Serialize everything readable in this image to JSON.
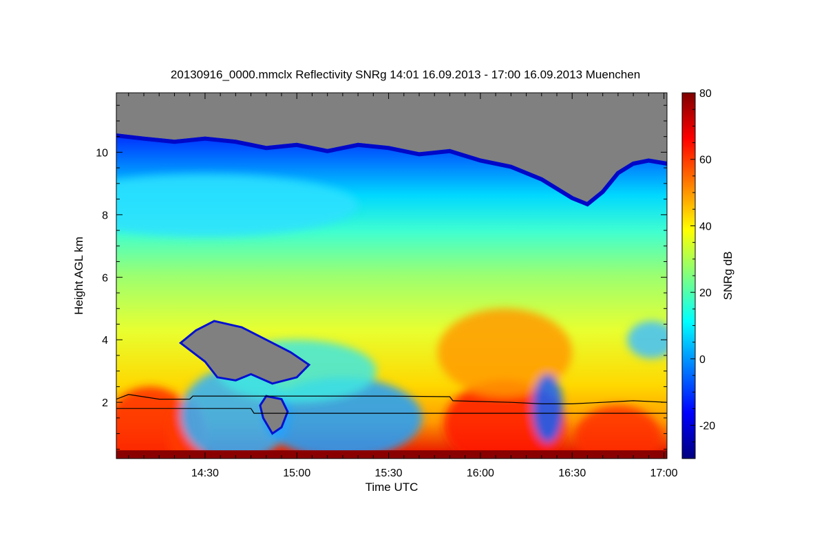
{
  "chart_data": {
    "type": "heatmap",
    "title": "20130916_0000.mmclx Reflectivity SNRg   14:01 16.09.2013 - 17:00 16.09.2013 Muenchen",
    "xlabel": "Time UTC",
    "ylabel": "Height AGL km",
    "colorbar_label": "SNRg dB",
    "x_range": [
      "14:01",
      "17:01"
    ],
    "y_range_km": [
      0.2,
      11.9
    ],
    "x_ticks": [
      {
        "label": "14:30",
        "minutes": 30
      },
      {
        "label": "15:00",
        "minutes": 60
      },
      {
        "label": "15:30",
        "minutes": 90
      },
      {
        "label": "16:00",
        "minutes": 120
      },
      {
        "label": "16:30",
        "minutes": 150
      },
      {
        "label": "17:00",
        "minutes": 180
      }
    ],
    "y_ticks": [
      {
        "label": "2",
        "value": 2
      },
      {
        "label": "4",
        "value": 4
      },
      {
        "label": "6",
        "value": 6
      },
      {
        "label": "8",
        "value": 8
      },
      {
        "label": "10",
        "value": 10
      }
    ],
    "colorbar_range_db": [
      -30,
      80
    ],
    "colorbar_ticks": [
      {
        "label": "80",
        "value": 80
      },
      {
        "label": "60",
        "value": 60
      },
      {
        "label": "40",
        "value": 40
      },
      {
        "label": "20",
        "value": 20
      },
      {
        "label": "0",
        "value": 0
      },
      {
        "label": "-20",
        "value": -20
      }
    ],
    "colormap": [
      "#00007f",
      "#0000ff",
      "#007fff",
      "#00ffff",
      "#7fff7f",
      "#ffff00",
      "#ff7f00",
      "#ff0000",
      "#7f0000"
    ],
    "no_signal_color": "#808080",
    "cloud_top_km": [
      [
        1,
        10.6
      ],
      [
        10,
        10.5
      ],
      [
        20,
        10.4
      ],
      [
        30,
        10.5
      ],
      [
        40,
        10.4
      ],
      [
        50,
        10.2
      ],
      [
        60,
        10.3
      ],
      [
        70,
        10.1
      ],
      [
        80,
        10.3
      ],
      [
        90,
        10.2
      ],
      [
        100,
        10.0
      ],
      [
        110,
        10.1
      ],
      [
        120,
        9.8
      ],
      [
        130,
        9.6
      ],
      [
        140,
        9.2
      ],
      [
        150,
        8.6
      ],
      [
        155,
        8.4
      ],
      [
        160,
        8.8
      ],
      [
        165,
        9.4
      ],
      [
        170,
        9.7
      ],
      [
        175,
        9.8
      ],
      [
        181,
        9.7
      ]
    ],
    "upper_line_km": [
      [
        1,
        2.1
      ],
      [
        5,
        2.25
      ],
      [
        15,
        2.1
      ],
      [
        25,
        2.1
      ],
      [
        26,
        2.2
      ],
      [
        60,
        2.2
      ],
      [
        90,
        2.2
      ],
      [
        110,
        2.18
      ],
      [
        111,
        2.05
      ],
      [
        130,
        2.0
      ],
      [
        140,
        1.95
      ],
      [
        150,
        1.95
      ],
      [
        160,
        2.0
      ],
      [
        170,
        2.05
      ],
      [
        181,
        2.0
      ]
    ],
    "lower_line_km": [
      [
        1,
        1.8
      ],
      [
        45,
        1.8
      ],
      [
        46,
        1.65
      ],
      [
        110,
        1.65
      ],
      [
        181,
        1.65
      ]
    ]
  }
}
